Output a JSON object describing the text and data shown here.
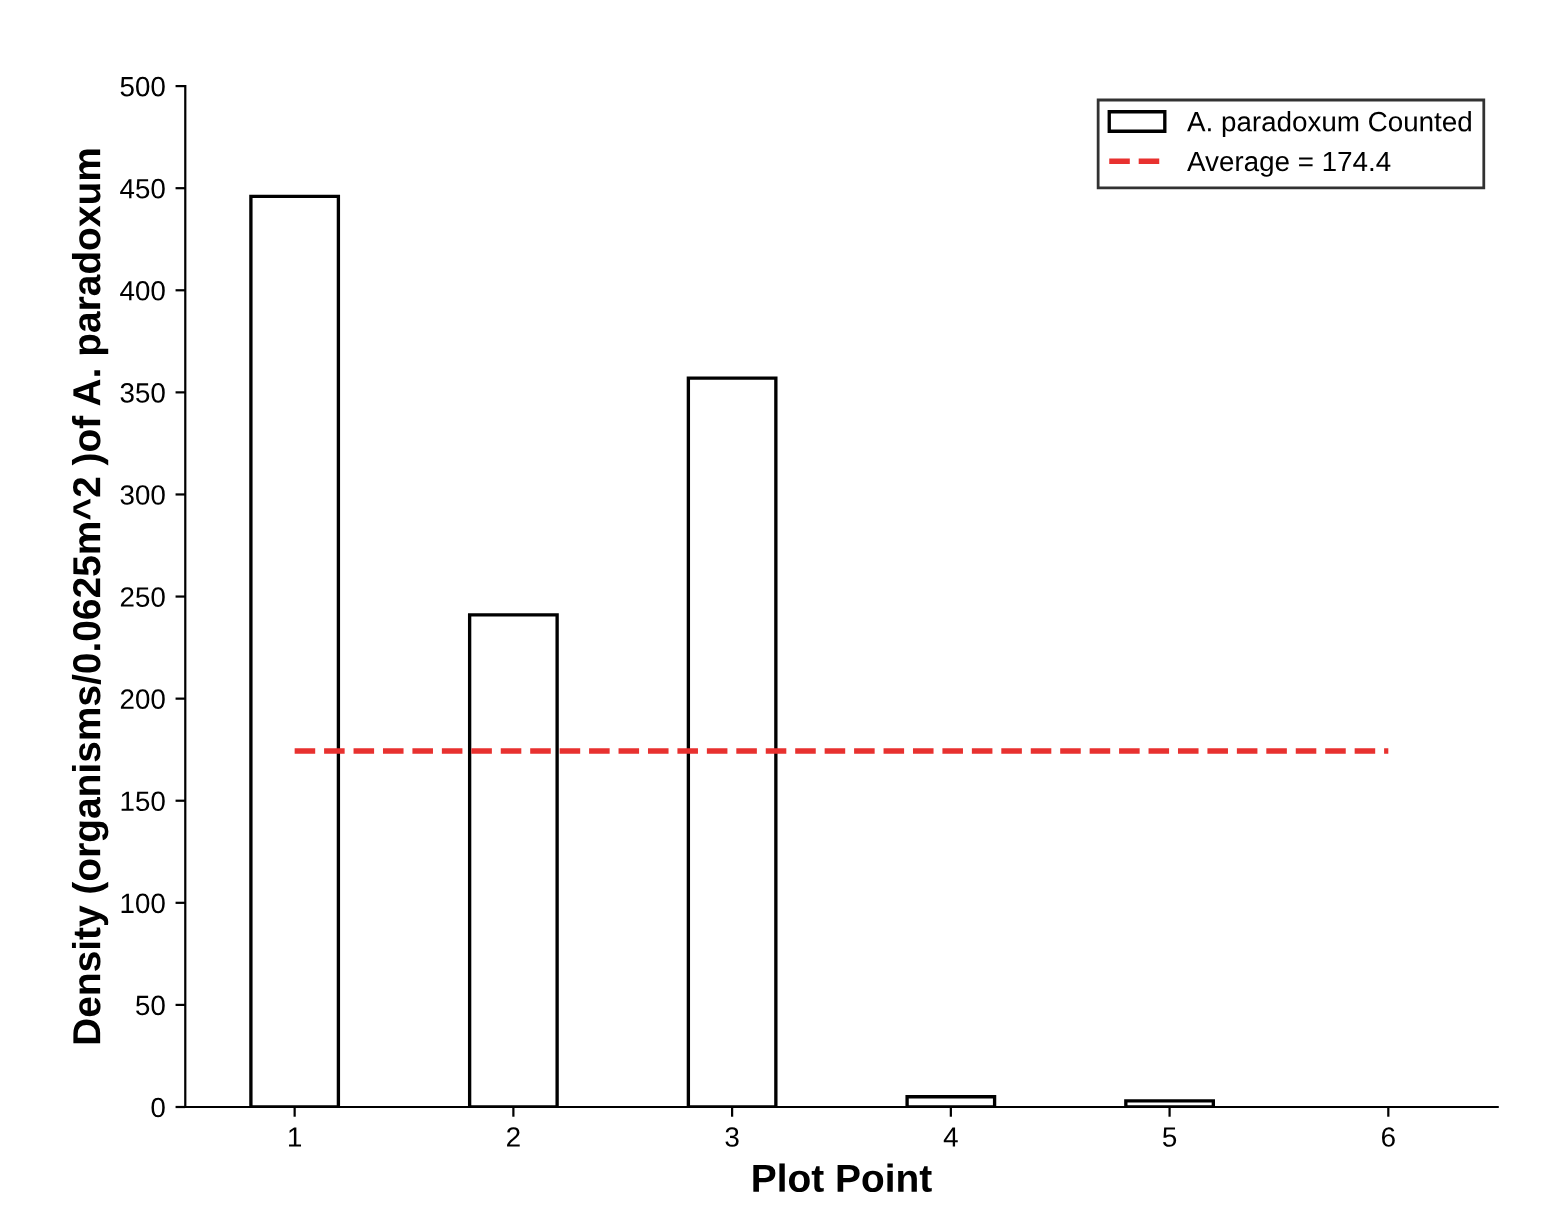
{
  "chart_data": {
    "type": "bar",
    "xlabel": "Plot Point",
    "ylabel": "Density (organisms/0.0625m^2 )of A. paradoxum",
    "categories": [
      "1",
      "2",
      "3",
      "4",
      "5",
      "6"
    ],
    "series": [
      {
        "name": "A. paradoxum Counted",
        "color": "#ffffff",
        "values": [
          446,
          241,
          357,
          5,
          3,
          null
        ]
      },
      {
        "name": "Average = 174.4",
        "type": "line",
        "color": "#e8312f",
        "line_style": "dashed",
        "values": [
          174.4,
          174.4,
          174.4,
          174.4,
          174.4,
          174.4
        ]
      }
    ],
    "ylim": [
      0,
      500
    ],
    "yticks": [
      0,
      50,
      100,
      150,
      200,
      250,
      300,
      350,
      400,
      450,
      500
    ],
    "grid": false,
    "legend": "top right"
  }
}
